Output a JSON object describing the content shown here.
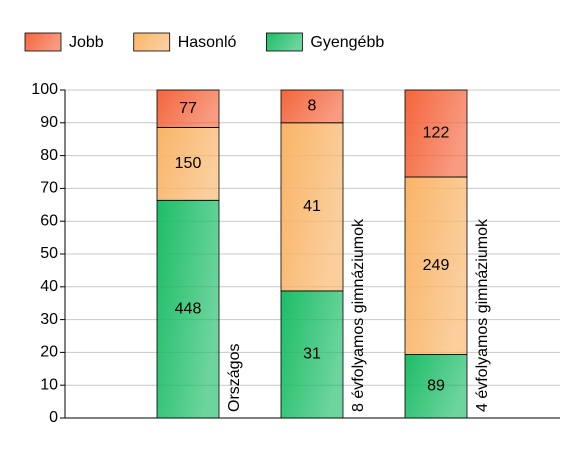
{
  "chart_data": {
    "type": "bar",
    "stacked": "percent",
    "categories": [
      null,
      "Országos",
      "8 évfolyamos gimnáziumok",
      "4 évfolyamos gimnáziumok"
    ],
    "series": [
      {
        "name": "Jobb",
        "color": "#f4653c",
        "values": [
          null,
          77,
          8,
          122
        ]
      },
      {
        "name": "Hasonló",
        "color": "#f9b467",
        "values": [
          null,
          150,
          41,
          249
        ]
      },
      {
        "name": "Gyengébb",
        "color": "#1dbd67",
        "values": [
          null,
          448,
          31,
          89
        ]
      }
    ],
    "ylim": [
      0,
      100
    ],
    "yticks": [
      0,
      10,
      20,
      30,
      40,
      50,
      60,
      70,
      80,
      90,
      100
    ],
    "grid": true,
    "legend": "top"
  }
}
